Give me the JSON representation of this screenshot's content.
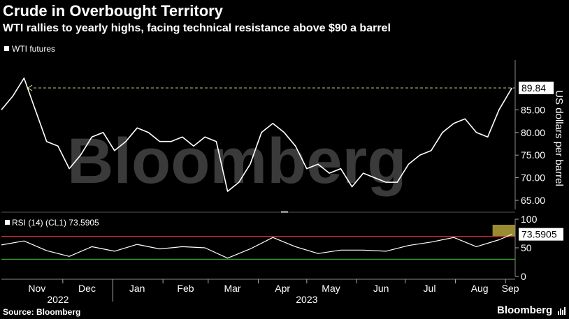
{
  "header": {
    "title": "Crude in Overbought Territory",
    "subtitle": "WTI rallies to yearly highs, facing technical resistance above $90 a barrel"
  },
  "legend": {
    "main": "WTI futures",
    "rsi": "RSI (14) (CL1) 73.5905"
  },
  "footer": {
    "source": "Source: Bloomberg",
    "brand": "Bloomberg"
  },
  "watermark": "Bloomberg",
  "colors": {
    "background": "#000000",
    "line": "#ffffff",
    "overbought": "#d0312d",
    "oversold": "#3fa535",
    "highlight": "#b5a33a",
    "resistance": "#c8c27a"
  },
  "chart_data": [
    {
      "type": "line",
      "ylabel": "US dollars per barrel",
      "ylim": [
        63,
        96
      ],
      "yticks": [
        "65.00",
        "70.00",
        "75.00",
        "80.00",
        "85.00"
      ],
      "last_label": "89.84",
      "resistance_level": 89.84,
      "x_months": [
        "Nov",
        "Dec",
        "Jan",
        "Feb",
        "Mar",
        "Apr",
        "May",
        "Jun",
        "Jul",
        "Aug",
        "Sep"
      ],
      "x_years": [
        "2022",
        "2023"
      ],
      "series": [
        {
          "x": [
            "2022-10-24",
            "2022-10-31",
            "2022-11-07",
            "2022-11-14",
            "2022-11-21",
            "2022-11-28",
            "2022-12-05",
            "2022-12-12",
            "2022-12-19",
            "2022-12-26",
            "2023-01-02",
            "2023-01-09",
            "2023-01-16",
            "2023-01-23",
            "2023-01-30",
            "2023-02-06",
            "2023-02-13",
            "2023-02-20",
            "2023-02-27",
            "2023-03-06",
            "2023-03-13",
            "2023-03-20",
            "2023-03-27",
            "2023-04-03",
            "2023-04-10",
            "2023-04-17",
            "2023-04-24",
            "2023-05-01",
            "2023-05-08",
            "2023-05-15",
            "2023-05-22",
            "2023-05-29",
            "2023-06-05",
            "2023-06-12",
            "2023-06-19",
            "2023-06-26",
            "2023-07-03",
            "2023-07-10",
            "2023-07-17",
            "2023-07-24",
            "2023-07-31",
            "2023-08-07",
            "2023-08-14",
            "2023-08-21",
            "2023-08-28",
            "2023-09-05"
          ],
          "values": [
            85,
            88,
            92,
            85,
            78,
            77,
            72,
            75,
            79,
            80,
            76,
            78,
            81,
            80,
            78,
            78,
            79,
            77,
            79,
            78,
            67,
            69,
            73,
            80,
            82,
            80,
            77,
            72,
            73,
            71,
            72,
            68,
            71,
            70,
            69,
            69,
            73,
            75,
            76,
            80,
            82,
            83,
            80,
            79,
            85,
            89.84
          ]
        }
      ]
    },
    {
      "type": "line",
      "name": "RSI (14) (CL1)",
      "ylim": [
        0,
        100
      ],
      "yticks": [
        "0",
        "50",
        "100"
      ],
      "last_label": "73.5905",
      "overbought": 70,
      "oversold": 30,
      "series": [
        {
          "x": [
            "2022-10-24",
            "2022-11-07",
            "2022-11-21",
            "2022-12-05",
            "2022-12-19",
            "2023-01-02",
            "2023-01-16",
            "2023-01-30",
            "2023-02-13",
            "2023-02-27",
            "2023-03-13",
            "2023-03-27",
            "2023-04-10",
            "2023-04-24",
            "2023-05-08",
            "2023-05-22",
            "2023-06-05",
            "2023-06-19",
            "2023-07-03",
            "2023-07-17",
            "2023-07-31",
            "2023-08-14",
            "2023-08-28",
            "2023-09-05"
          ],
          "values": [
            55,
            62,
            45,
            35,
            52,
            44,
            56,
            48,
            52,
            50,
            32,
            48,
            68,
            52,
            40,
            46,
            46,
            44,
            54,
            60,
            68,
            52,
            64,
            73.5905
          ]
        }
      ]
    }
  ]
}
